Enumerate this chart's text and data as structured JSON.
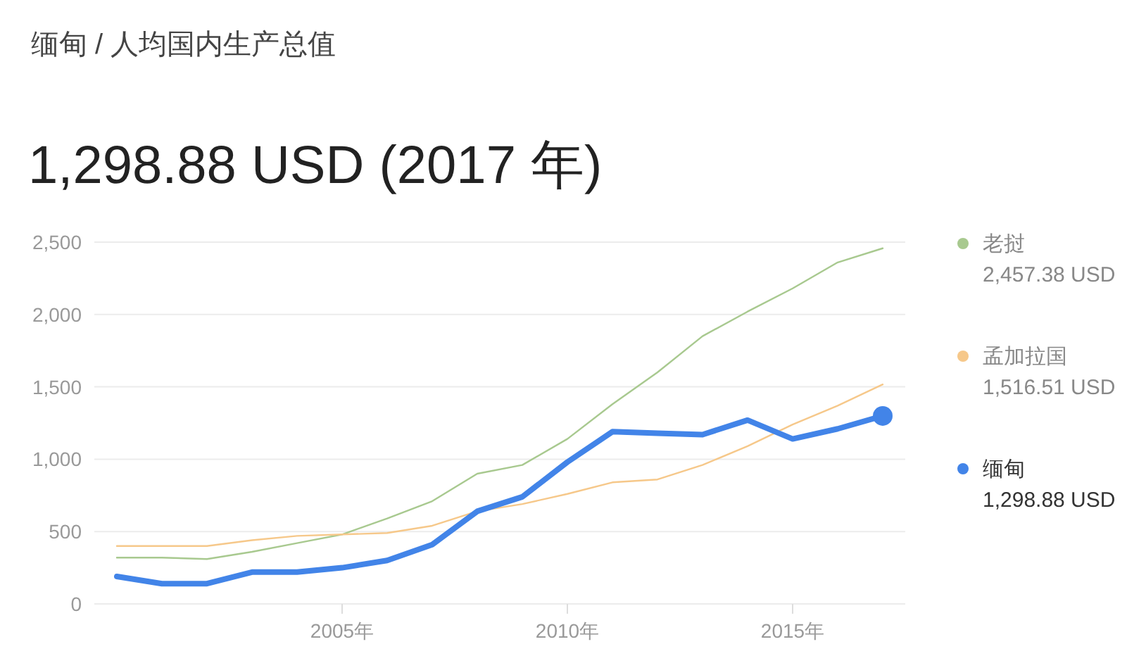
{
  "chart_data": {
    "type": "line",
    "title": "缅甸 / 人均国内生产总值",
    "subtitle": "1,298.88 USD (2017 年)",
    "x": [
      2000,
      2001,
      2002,
      2003,
      2004,
      2005,
      2006,
      2007,
      2008,
      2009,
      2010,
      2011,
      2012,
      2013,
      2014,
      2015,
      2016,
      2017
    ],
    "series": [
      {
        "name": "老挝",
        "color": "#a8c98f",
        "values": [
          320,
          320,
          310,
          360,
          420,
          480,
          590,
          710,
          900,
          960,
          1140,
          1380,
          1600,
          1850,
          2020,
          2180,
          2360,
          2457.38
        ]
      },
      {
        "name": "孟加拉国",
        "color": "#f6c88a",
        "values": [
          400,
          400,
          400,
          440,
          470,
          480,
          490,
          540,
          640,
          690,
          760,
          840,
          860,
          960,
          1090,
          1240,
          1370,
          1516.51
        ]
      },
      {
        "name": "缅甸",
        "color": "#4284e8",
        "values": [
          190,
          140,
          140,
          220,
          220,
          250,
          300,
          410,
          640,
          740,
          980,
          1190,
          1180,
          1170,
          1270,
          1140,
          1210,
          1298.88
        ]
      },
      {
        "type": "scatter",
        "color": "#4284e8",
        "x": [
          2017
        ],
        "values": [
          1298.88
        ]
      }
    ],
    "annotations": [
      "2,457.38 USD",
      "1,516.51 USD",
      "1,298.88 USD"
    ],
    "xlim": [
      1999.5,
      2017.5
    ],
    "xticks": [
      {
        "value": 2005,
        "label": "2005年"
      },
      {
        "value": 2010,
        "label": "2010年"
      },
      {
        "value": 2015,
        "label": "2015年"
      }
    ],
    "ylim": [
      0,
      2500
    ],
    "yticks": [
      {
        "value": 0,
        "label": "0"
      },
      {
        "value": 500,
        "label": "500"
      },
      {
        "value": 1000,
        "label": "1,000"
      },
      {
        "value": 1500,
        "label": "1,500"
      },
      {
        "value": 2000,
        "label": "2,000"
      },
      {
        "value": 2500,
        "label": "2,500"
      }
    ],
    "grid": "y",
    "legend": "right"
  }
}
